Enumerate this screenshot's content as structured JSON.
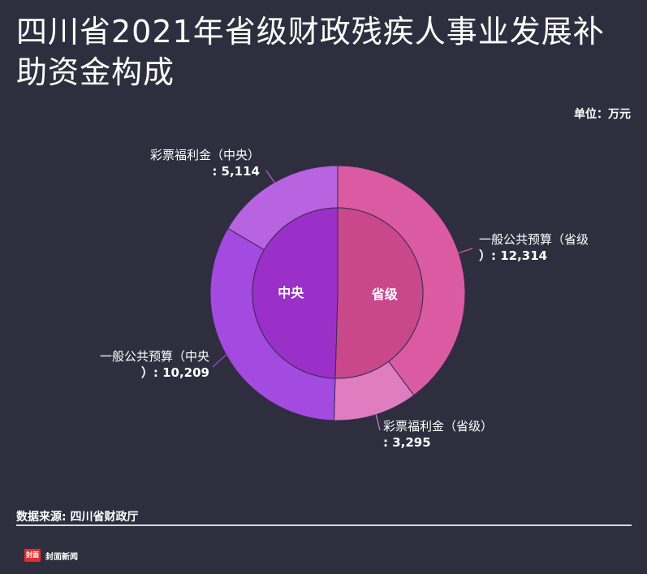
{
  "title": "四川省2021年省级财政残疾人事业发展补助资金构成",
  "unit": "单位：万元",
  "source": "数据来源: 四川省财政厅",
  "logo_text": "封面新闻",
  "logo_badge": "封面",
  "chart_data": {
    "type": "pie",
    "subtype": "nested-donut",
    "title": "四川省2021年省级财政残疾人事业发展补助资金构成",
    "unit": "万元",
    "inner": [
      {
        "name": "中央",
        "value": 15323,
        "color": "#9b30c8"
      },
      {
        "name": "省级",
        "value": 15609,
        "color": "#c8488b"
      }
    ],
    "outer": [
      {
        "name": "一般公共预算（省级）",
        "value": 12314,
        "parent": "省级",
        "color": "#db5ba3",
        "label_line1": "一般公共预算（省级",
        "label_line2": "）: 12,314"
      },
      {
        "name": "彩票福利金（省级）",
        "value": 3295,
        "parent": "省级",
        "color": "#e07cc0",
        "label_line1": "彩票福利金（省级）",
        "label_line2": ": 3,295"
      },
      {
        "name": "一般公共预算（中央）",
        "value": 10209,
        "parent": "中央",
        "color": "#a34ae0",
        "label_line1": "一般公共预算（中央",
        "label_line2": "）: 10,209"
      },
      {
        "name": "彩票福利金（中央）",
        "value": 5114,
        "parent": "中央",
        "color": "#b863e0",
        "label_line1": "彩票福利金（中央）",
        "label_line2": ": 5,114"
      }
    ]
  }
}
